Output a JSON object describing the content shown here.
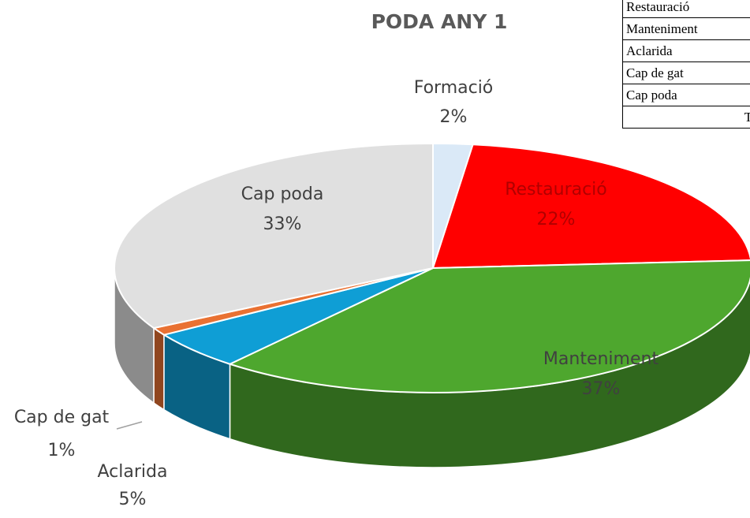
{
  "chart_data": {
    "type": "pie",
    "title": "PODA ANY 1",
    "categories": [
      "Formació",
      "Restauració",
      "Manteniment",
      "Aclarida",
      "Cap de gat",
      "Cap poda"
    ],
    "values": [
      2,
      22,
      37,
      5,
      1,
      33
    ],
    "value_labels": [
      "2%",
      "22%",
      "37%",
      "5%",
      "1%",
      "33%"
    ],
    "colors": [
      "#dae9f7",
      "#ff0000",
      "#4ea72e",
      "#0f9ed5",
      "#e97132",
      "#e0e0e0"
    ]
  },
  "table": {
    "rows": [
      "Restauració",
      "Manteniment",
      "Aclarida",
      "Cap de gat",
      "Cap poda"
    ],
    "total": "T"
  }
}
